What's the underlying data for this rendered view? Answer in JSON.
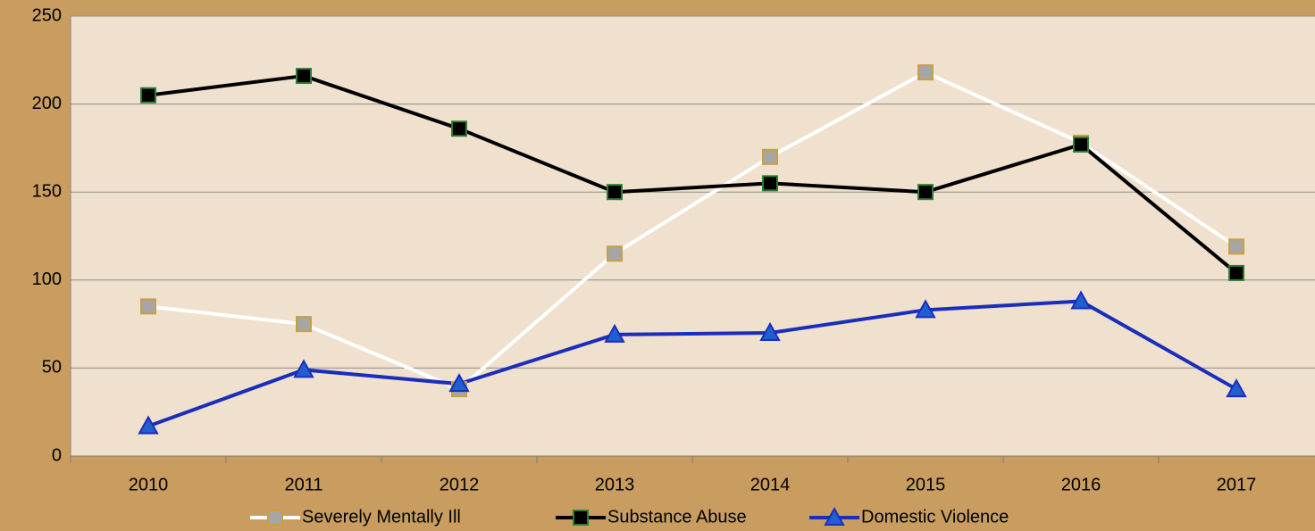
{
  "chart_data": {
    "type": "line",
    "categories": [
      "2010",
      "2011",
      "2012",
      "2013",
      "2014",
      "2015",
      "2016",
      "2017"
    ],
    "series": [
      {
        "name": "Severely Mentally Ill",
        "color": "#ffffff",
        "marker_fill": "#a6a6a6",
        "marker_edge": "#c8a040",
        "marker": "square",
        "values": [
          85,
          75,
          38,
          115,
          170,
          218,
          178,
          119
        ]
      },
      {
        "name": "Substance Abuse",
        "color": "#000000",
        "marker_fill": "#000000",
        "marker_edge": "#2e7d32",
        "marker": "square",
        "values": [
          205,
          216,
          186,
          150,
          155,
          150,
          177,
          104
        ]
      },
      {
        "name": "Domestic Violence",
        "color": "#1a2dbb",
        "marker_fill": "#1f5fcf",
        "marker_edge": "#1a2dbb",
        "marker": "triangle",
        "values": [
          17,
          49,
          41,
          69,
          70,
          83,
          88,
          38
        ]
      }
    ],
    "ylim": [
      0,
      250
    ],
    "yticks": [
      0,
      50,
      100,
      150,
      200,
      250
    ],
    "grid": true,
    "legend": "bottom"
  }
}
